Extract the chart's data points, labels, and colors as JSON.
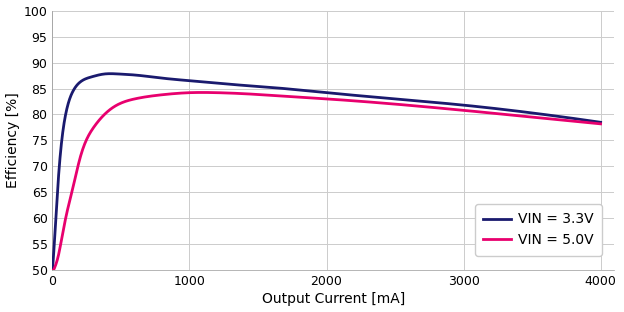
{
  "title": "",
  "xlabel": "Output Current [mA]",
  "ylabel": "Efficiency [%]",
  "xlim": [
    0,
    4100
  ],
  "ylim": [
    50,
    100
  ],
  "yticks": [
    50,
    55,
    60,
    65,
    70,
    75,
    80,
    85,
    90,
    95,
    100
  ],
  "xticks": [
    0,
    1000,
    2000,
    3000,
    4000
  ],
  "background_color": "#ffffff",
  "grid_color": "#cccccc",
  "line_33": {
    "color": "#1a1a6e",
    "label": "VIN = 3.3V",
    "linewidth": 2.0
  },
  "line_50": {
    "color": "#e8006e",
    "label": "VIN = 5.0V",
    "linewidth": 2.0
  },
  "curve_33_x": [
    0,
    20,
    40,
    70,
    100,
    150,
    200,
    280,
    380,
    480,
    600,
    800,
    1000,
    1300,
    1600,
    2000,
    2500,
    3000,
    3500,
    4000
  ],
  "curve_33_y": [
    50.0,
    58.0,
    66.5,
    75.5,
    80.5,
    84.5,
    86.2,
    87.2,
    87.8,
    87.8,
    87.6,
    87.0,
    86.5,
    85.8,
    85.2,
    84.2,
    83.0,
    81.8,
    80.3,
    78.5
  ],
  "curve_50_x": [
    0,
    10,
    20,
    40,
    70,
    100,
    150,
    200,
    300,
    450,
    600,
    800,
    1000,
    1200,
    1400,
    1700,
    2000,
    2500,
    3000,
    3500,
    4000
  ],
  "curve_50_y": [
    50.0,
    50.2,
    50.8,
    52.5,
    56.5,
    60.5,
    66.0,
    71.5,
    77.5,
    81.5,
    83.0,
    83.8,
    84.2,
    84.2,
    84.0,
    83.5,
    83.0,
    82.0,
    80.8,
    79.5,
    78.2
  ],
  "font_size": 10,
  "axis_font_size": 10,
  "tick_font_size": 9
}
